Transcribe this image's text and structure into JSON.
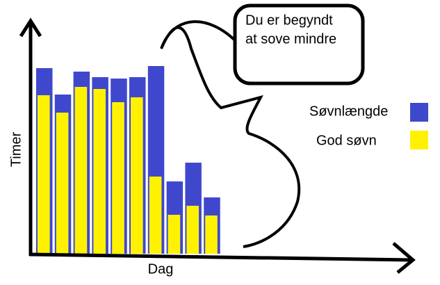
{
  "chart_data": {
    "type": "bar",
    "annotation": [
      "Du er begyndt",
      "at sove mindre"
    ],
    "x_label": "Dag",
    "y_label": "Timer",
    "categories": [
      null,
      null,
      null,
      null,
      null,
      null,
      null,
      null,
      null,
      null
    ],
    "series": [
      {
        "name": "Søvnlængde",
        "color": "#3f48cc",
        "values": [
          267,
          229,
          262,
          254,
          252,
          254,
          270,
          104,
          131,
          81
        ]
      },
      {
        "name": "God søvn",
        "color": "#fff200",
        "values": [
          228,
          203,
          240,
          237,
          218,
          225,
          111,
          56,
          69,
          55
        ]
      }
    ],
    "ylim": [
      0,
      330
    ]
  }
}
